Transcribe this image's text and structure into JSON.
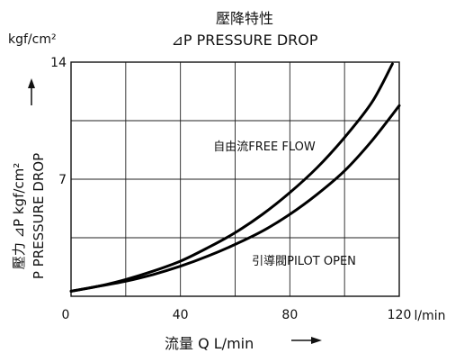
{
  "chart_data": {
    "type": "line",
    "title_zh": "壓降特性",
    "title_en": "⊿P PRESSURE DROP",
    "y_unit": "kgf/cm²",
    "x_unit": "l/min",
    "ylabel_zh": "壓力 ⊿P kgf/cm²",
    "ylabel_en": "P PRESSURE DROP",
    "xlabel": "流量 Q L/min",
    "xlim": [
      0,
      120
    ],
    "ylim": [
      0,
      14
    ],
    "x_ticks": [
      0,
      40,
      80,
      120
    ],
    "y_ticks": [
      7,
      14
    ],
    "x_tick_labels": [
      "0",
      "40",
      "80",
      "120"
    ],
    "y_tick_labels": [
      "7",
      "14"
    ],
    "grid": true,
    "series": [
      {
        "name": "自由流FREE FLOW",
        "x": [
          0,
          10,
          20,
          30,
          40,
          50,
          60,
          70,
          80,
          90,
          100,
          110,
          117.5
        ],
        "y": [
          0.3,
          0.6,
          1.0,
          1.5,
          2.1,
          2.9,
          3.8,
          4.9,
          6.2,
          7.7,
          9.5,
          11.6,
          13.9
        ]
      },
      {
        "name": "引導閥PILOT OPEN",
        "x": [
          0,
          10,
          20,
          30,
          40,
          50,
          60,
          70,
          80,
          90,
          100,
          110,
          120
        ],
        "y": [
          0.3,
          0.6,
          0.9,
          1.3,
          1.8,
          2.4,
          3.1,
          3.9,
          4.9,
          6.1,
          7.5,
          9.3,
          11.4
        ]
      }
    ]
  }
}
